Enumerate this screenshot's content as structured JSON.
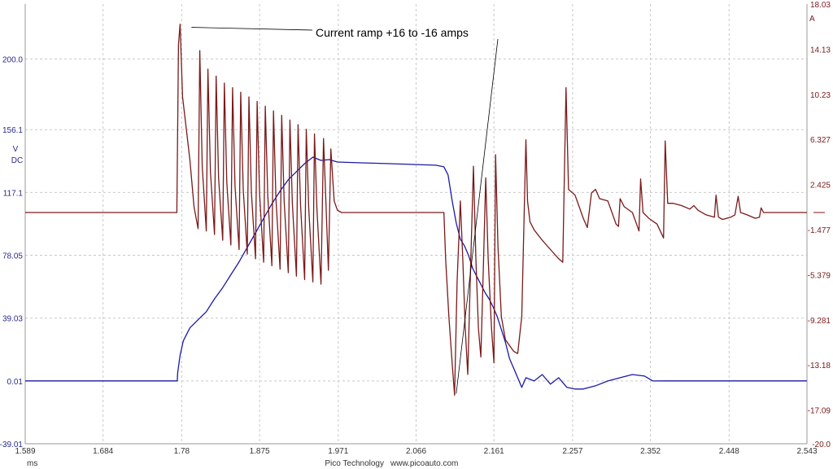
{
  "chart_data": {
    "type": "line",
    "title": "",
    "x_axis": {
      "unit_label": "ms",
      "range": [
        1.589,
        2.543
      ],
      "ticks": [
        "1.589",
        "1.684",
        "1.78",
        "1.875",
        "1.971",
        "2.066",
        "2.161",
        "2.257",
        "2.352",
        "2.448",
        "2.543"
      ]
    },
    "y_left": {
      "unit_label": "V",
      "coupling_label": "DC",
      "range": [
        -39.01,
        234.1
      ],
      "ticks": [
        "200.0",
        "156.1",
        "117.1",
        "78.05",
        "39.03",
        "0.01",
        "-39.01"
      ]
    },
    "y_right": {
      "unit_label": "A",
      "range": [
        -20.0,
        18.03
      ],
      "ticks": [
        "18.03",
        "14.13",
        "10.23",
        "6.327",
        "2.425",
        "-1.477",
        "-5.379",
        "-9.281",
        "-13.18",
        "-17.09",
        "-20.0"
      ]
    },
    "grid": true,
    "annotation": {
      "text": "Current ramp +16 to -16 amps",
      "points_to": [
        {
          "x": 1.782,
          "y": 16.3,
          "axis": "right"
        },
        {
          "x": 2.113,
          "y": -15.8,
          "axis": "right"
        }
      ]
    },
    "series": [
      {
        "axis": "left",
        "color": "#1a1aa6",
        "points": [
          [
            1.589,
            0.01
          ],
          [
            1.65,
            0.01
          ],
          [
            1.7,
            0.01
          ],
          [
            1.7745,
            0.01
          ],
          [
            1.775,
            5.0
          ],
          [
            1.778,
            16.0
          ],
          [
            1.782,
            25.0
          ],
          [
            1.79,
            33.0
          ],
          [
            1.8,
            38.0
          ],
          [
            1.81,
            43.0
          ],
          [
            1.82,
            51.0
          ],
          [
            1.83,
            58.0
          ],
          [
            1.84,
            66.0
          ],
          [
            1.85,
            74.0
          ],
          [
            1.86,
            83.0
          ],
          [
            1.87,
            92.0
          ],
          [
            1.88,
            101.0
          ],
          [
            1.89,
            110.0
          ],
          [
            1.9,
            118.0
          ],
          [
            1.91,
            125.0
          ],
          [
            1.92,
            130.0
          ],
          [
            1.93,
            135.0
          ],
          [
            1.94,
            139.0
          ],
          [
            1.95,
            137.0
          ],
          [
            1.96,
            137.5
          ],
          [
            1.97,
            136.0
          ],
          [
            2.0,
            135.5
          ],
          [
            2.03,
            135.0
          ],
          [
            2.06,
            134.5
          ],
          [
            2.09,
            134.0
          ],
          [
            2.1,
            133.0
          ],
          [
            2.105,
            128.0
          ],
          [
            2.11,
            112.0
          ],
          [
            2.115,
            98.0
          ],
          [
            2.12,
            88.0
          ],
          [
            2.125,
            84.0
          ],
          [
            2.13,
            78.0
          ],
          [
            2.135,
            70.0
          ],
          [
            2.14,
            65.0
          ],
          [
            2.145,
            60.0
          ],
          [
            2.15,
            55.0
          ],
          [
            2.155,
            51.0
          ],
          [
            2.16,
            46.0
          ],
          [
            2.165,
            40.0
          ],
          [
            2.17,
            32.0
          ],
          [
            2.175,
            24.0
          ],
          [
            2.18,
            14.0
          ],
          [
            2.185,
            8.0
          ],
          [
            2.19,
            2.0
          ],
          [
            2.195,
            -4.0
          ],
          [
            2.2,
            2.0
          ],
          [
            2.21,
            0.0
          ],
          [
            2.22,
            4.0
          ],
          [
            2.23,
            -2.0
          ],
          [
            2.24,
            2.0
          ],
          [
            2.25,
            -4.0
          ],
          [
            2.26,
            -5.0
          ],
          [
            2.27,
            -5.0
          ],
          [
            2.285,
            -3.0
          ],
          [
            2.3,
            0.0
          ],
          [
            2.315,
            2.0
          ],
          [
            2.33,
            4.0
          ],
          [
            2.345,
            3.0
          ],
          [
            2.355,
            0.0
          ],
          [
            2.37,
            0.01
          ],
          [
            2.45,
            0.01
          ],
          [
            2.543,
            0.01
          ]
        ]
      },
      {
        "axis": "right",
        "color": "#7a1a1a",
        "points": [
          [
            1.589,
            0.0
          ],
          [
            1.7,
            0.0
          ],
          [
            1.774,
            0.0
          ],
          [
            1.776,
            14.5
          ],
          [
            1.778,
            16.3
          ],
          [
            1.781,
            10.0
          ],
          [
            1.786,
            7.0
          ],
          [
            1.79,
            4.5
          ],
          [
            1.795,
            0.5
          ],
          [
            1.8,
            -1.4
          ],
          [
            1.802,
            14.0
          ],
          [
            1.805,
            4.0
          ],
          [
            1.81,
            -1.6
          ],
          [
            1.812,
            12.4
          ],
          [
            1.815,
            3.5
          ],
          [
            1.82,
            -1.9
          ],
          [
            1.822,
            11.8
          ],
          [
            1.825,
            3.0
          ],
          [
            1.83,
            -2.4
          ],
          [
            1.832,
            11.2
          ],
          [
            1.835,
            2.6
          ],
          [
            1.84,
            -2.8
          ],
          [
            1.842,
            10.8
          ],
          [
            1.845,
            2.3
          ],
          [
            1.85,
            -3.2
          ],
          [
            1.852,
            10.4
          ],
          [
            1.855,
            2.0
          ],
          [
            1.86,
            -3.6
          ],
          [
            1.862,
            10.0
          ],
          [
            1.865,
            1.8
          ],
          [
            1.87,
            -4.0
          ],
          [
            1.872,
            9.6
          ],
          [
            1.875,
            1.6
          ],
          [
            1.88,
            -4.3
          ],
          [
            1.882,
            9.2
          ],
          [
            1.885,
            1.4
          ],
          [
            1.89,
            -4.6
          ],
          [
            1.892,
            8.8
          ],
          [
            1.895,
            1.2
          ],
          [
            1.9,
            -4.9
          ],
          [
            1.902,
            8.4
          ],
          [
            1.905,
            1.0
          ],
          [
            1.91,
            -5.2
          ],
          [
            1.912,
            8.0
          ],
          [
            1.915,
            0.8
          ],
          [
            1.92,
            -5.5
          ],
          [
            1.922,
            7.6
          ],
          [
            1.925,
            0.6
          ],
          [
            1.93,
            -5.8
          ],
          [
            1.932,
            7.2
          ],
          [
            1.935,
            0.4
          ],
          [
            1.94,
            -6.0
          ],
          [
            1.942,
            6.8
          ],
          [
            1.945,
            0.3
          ],
          [
            1.95,
            -6.2
          ],
          [
            1.953,
            6.4
          ],
          [
            1.956,
            0.8
          ],
          [
            1.959,
            -5.0
          ],
          [
            1.962,
            5.5
          ],
          [
            1.966,
            1.0
          ],
          [
            1.97,
            0.2
          ],
          [
            1.975,
            0.0
          ],
          [
            2.0,
            0.0
          ],
          [
            2.05,
            0.0
          ],
          [
            2.1,
            0.0
          ],
          [
            2.102,
            -4.0
          ],
          [
            2.106,
            -9.0
          ],
          [
            2.11,
            -13.0
          ],
          [
            2.113,
            -15.8
          ],
          [
            2.116,
            -6.0
          ],
          [
            2.12,
            1.0
          ],
          [
            2.123,
            -4.0
          ],
          [
            2.126,
            -10.0
          ],
          [
            2.129,
            -14.0
          ],
          [
            2.132,
            -6.0
          ],
          [
            2.136,
            4.0
          ],
          [
            2.139,
            -4.0
          ],
          [
            2.142,
            -10.0
          ],
          [
            2.145,
            -12.5
          ],
          [
            2.148,
            -5.0
          ],
          [
            2.151,
            3.0
          ],
          [
            2.154,
            -4.0
          ],
          [
            2.158,
            -10.0
          ],
          [
            2.161,
            -13.0
          ],
          [
            2.163,
            5.0
          ],
          [
            2.166,
            -3.0
          ],
          [
            2.17,
            -9.0
          ],
          [
            2.175,
            -11.0
          ],
          [
            2.18,
            -11.5
          ],
          [
            2.185,
            -12.0
          ],
          [
            2.19,
            -12.2
          ],
          [
            2.195,
            -9.0
          ],
          [
            2.2,
            6.3
          ],
          [
            2.202,
            1.0
          ],
          [
            2.205,
            -0.8
          ],
          [
            2.21,
            -1.5
          ],
          [
            2.22,
            -2.4
          ],
          [
            2.23,
            -3.2
          ],
          [
            2.24,
            -4.0
          ],
          [
            2.245,
            -4.3
          ],
          [
            2.249,
            10.8
          ],
          [
            2.252,
            2.0
          ],
          [
            2.26,
            1.5
          ],
          [
            2.265,
            0.5
          ],
          [
            2.27,
            -0.5
          ],
          [
            2.275,
            -1.3
          ],
          [
            2.28,
            1.7
          ],
          [
            2.285,
            2.0
          ],
          [
            2.29,
            1.2
          ],
          [
            2.3,
            1.0
          ],
          [
            2.305,
            0.0
          ],
          [
            2.31,
            -1.0
          ],
          [
            2.313,
            -1.2
          ],
          [
            2.315,
            1.2
          ],
          [
            2.32,
            0.5
          ],
          [
            2.33,
            0.0
          ],
          [
            2.335,
            -1.0
          ],
          [
            2.338,
            -1.6
          ],
          [
            2.34,
            2.9
          ],
          [
            2.343,
            0.0
          ],
          [
            2.35,
            -0.5
          ],
          [
            2.36,
            -1.0
          ],
          [
            2.368,
            -2.2
          ],
          [
            2.37,
            6.2
          ],
          [
            2.373,
            0.8
          ],
          [
            2.38,
            0.8
          ],
          [
            2.39,
            0.6
          ],
          [
            2.4,
            0.3
          ],
          [
            2.405,
            0.6
          ],
          [
            2.41,
            0.2
          ],
          [
            2.42,
            -0.2
          ],
          [
            2.43,
            -0.4
          ],
          [
            2.432,
            1.5
          ],
          [
            2.435,
            -0.4
          ],
          [
            2.44,
            -0.6
          ],
          [
            2.45,
            -0.4
          ],
          [
            2.455,
            -0.2
          ],
          [
            2.459,
            1.4
          ],
          [
            2.462,
            0.0
          ],
          [
            2.47,
            -0.2
          ],
          [
            2.48,
            -0.5
          ],
          [
            2.485,
            -0.4
          ],
          [
            2.487,
            0.4
          ],
          [
            2.49,
            0.0
          ],
          [
            2.5,
            0.0
          ],
          [
            2.543,
            0.0
          ]
        ]
      }
    ]
  },
  "footer": {
    "brand": "Pico Technology",
    "website": "www.picoauto.com"
  }
}
